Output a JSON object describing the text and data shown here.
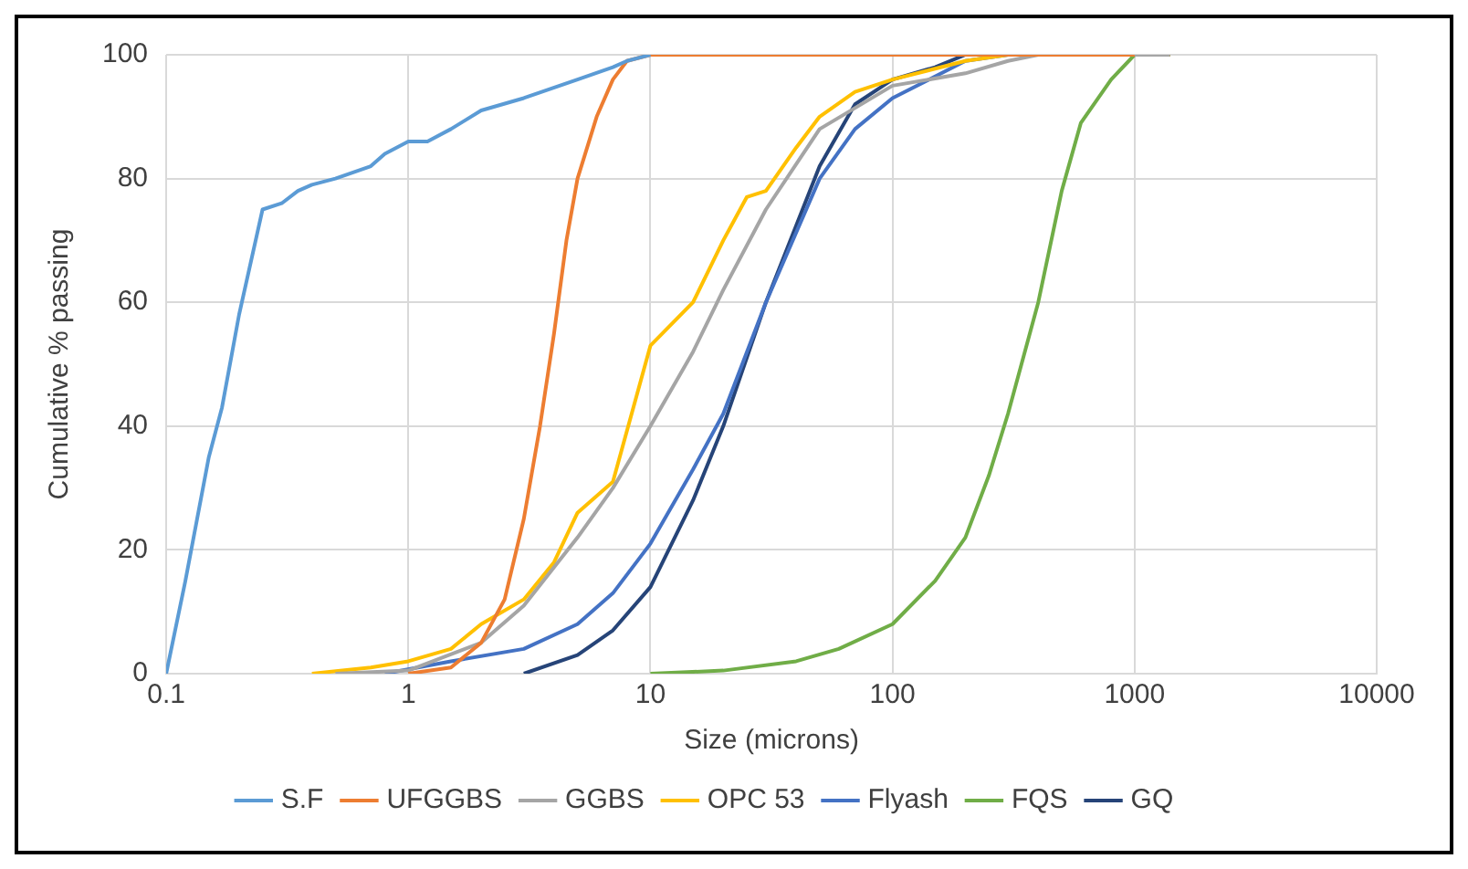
{
  "chart_data": {
    "type": "line",
    "xlabel": "Size (microns)",
    "ylabel": "Cumulative % passing",
    "log": "x",
    "xlim": [
      0.1,
      10000
    ],
    "xticks": [
      0.1,
      1,
      10,
      100,
      1000,
      10000
    ],
    "ylim": [
      0,
      100
    ],
    "yticks": [
      0,
      20,
      40,
      60,
      80,
      100
    ],
    "grid": true,
    "legend": "bottom",
    "marker": "none",
    "series": [
      {
        "name": "S.F",
        "color": "#5b9bd5",
        "x": [
          0.1,
          0.12,
          0.15,
          0.17,
          0.2,
          0.25,
          0.3,
          0.35,
          0.4,
          0.5,
          0.7,
          0.8,
          1,
          1.2,
          1.5,
          2,
          3,
          5,
          7,
          8,
          10
        ],
        "values": [
          0,
          15,
          35,
          43,
          58,
          75,
          76,
          78,
          79,
          80,
          82,
          84,
          86,
          86,
          88,
          91,
          93,
          96,
          98,
          99,
          100
        ]
      },
      {
        "name": "UFGGBS",
        "color": "#ed7d31",
        "x": [
          1,
          1.5,
          2,
          2.5,
          3,
          3.5,
          4,
          4.5,
          5,
          6,
          7,
          8,
          10,
          100,
          1000
        ],
        "values": [
          0,
          1,
          5,
          12,
          25,
          40,
          55,
          70,
          80,
          90,
          96,
          99,
          100,
          100,
          100
        ]
      },
      {
        "name": "GGBS",
        "color": "#a5a5a5",
        "x": [
          0.5,
          1,
          2,
          3,
          5,
          7,
          10,
          15,
          20,
          30,
          50,
          100,
          200,
          300,
          400,
          1400
        ],
        "values": [
          0,
          0.5,
          5,
          11,
          22,
          30,
          40,
          52,
          62,
          75,
          88,
          95,
          97,
          99,
          100,
          100
        ]
      },
      {
        "name": "OPC 53",
        "color": "#ffc000",
        "x": [
          0.4,
          0.7,
          1,
          1.5,
          2,
          3,
          4,
          5,
          7,
          10,
          15,
          20,
          25,
          30,
          40,
          50,
          70,
          100,
          200,
          300,
          1400
        ],
        "values": [
          0,
          1,
          2,
          4,
          8,
          12,
          18,
          26,
          31,
          53,
          60,
          70,
          77,
          78,
          85,
          90,
          94,
          96,
          99,
          100,
          100
        ]
      },
      {
        "name": "Flyash",
        "color": "#4472c4",
        "x": [
          0.8,
          1.5,
          3,
          5,
          7,
          10,
          15,
          20,
          30,
          50,
          70,
          100,
          200,
          300,
          1400
        ],
        "values": [
          0,
          2,
          4,
          8,
          13,
          21,
          33,
          42,
          60,
          80,
          88,
          93,
          99,
          100,
          100
        ]
      },
      {
        "name": "FQS",
        "color": "#70ad47",
        "x": [
          10,
          20,
          40,
          60,
          100,
          150,
          200,
          250,
          300,
          400,
          500,
          600,
          800,
          1000,
          1400
        ],
        "values": [
          0,
          0.5,
          2,
          4,
          8,
          15,
          22,
          32,
          42,
          60,
          78,
          89,
          96,
          100,
          100
        ]
      },
      {
        "name": "GQ",
        "color": "#264478",
        "x": [
          3,
          5,
          7,
          10,
          15,
          20,
          30,
          50,
          70,
          100,
          150,
          200,
          1400
        ],
        "values": [
          0,
          3,
          7,
          14,
          28,
          40,
          60,
          82,
          92,
          96,
          98,
          100,
          100
        ]
      }
    ]
  }
}
